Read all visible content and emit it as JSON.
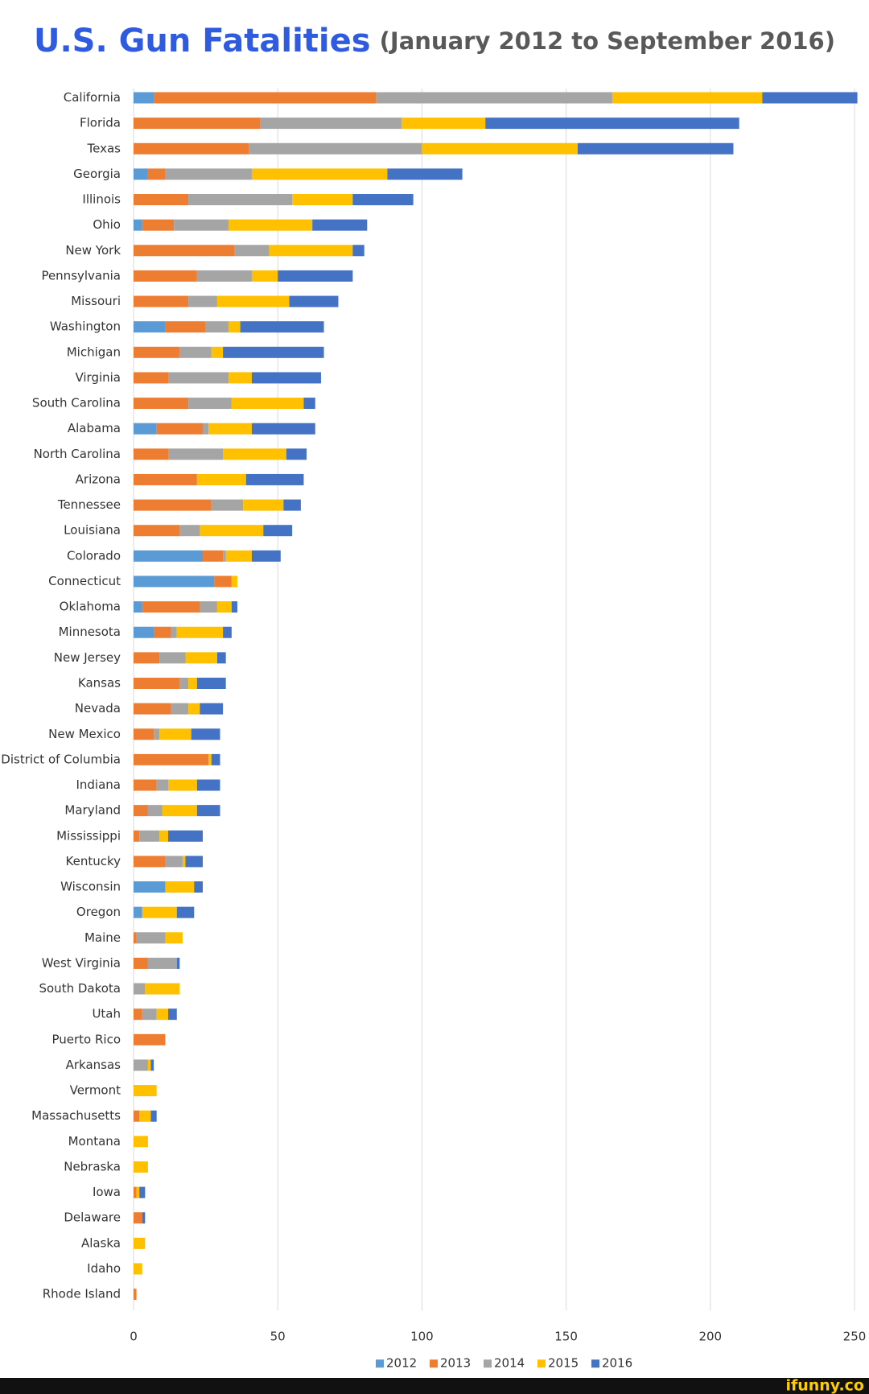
{
  "chart_data": {
    "type": "stacked_bar_horizontal",
    "title": "U.S. Gun Fatalities",
    "subtitle": "(January 2012 to September 2016)",
    "categories": [
      "California",
      "Florida",
      "Texas",
      "Georgia",
      "Illinois",
      "Ohio",
      "New York",
      "Pennsylvania",
      "Missouri",
      "Washington",
      "Michigan",
      "Virginia",
      "South Carolina",
      "Alabama",
      "North Carolina",
      "Arizona",
      "Tennessee",
      "Louisiana",
      "Colorado",
      "Connecticut",
      "Oklahoma",
      "Minnesota",
      "New Jersey",
      "Kansas",
      "Nevada",
      "New Mexico",
      "District of Columbia",
      "Indiana",
      "Maryland",
      "Mississippi",
      "Kentucky",
      "Wisconsin",
      "Oregon",
      "Maine",
      "West Virginia",
      "South Dakota",
      "Utah",
      "Puerto Rico",
      "Arkansas",
      "Vermont",
      "Massachusetts",
      "Montana",
      "Nebraska",
      "Iowa",
      "Delaware",
      "Alaska",
      "Idaho",
      "Rhode Island"
    ],
    "series": [
      {
        "name": "2012",
        "color": "#5b9bd5",
        "values": [
          7,
          0,
          0,
          5,
          0,
          3,
          0,
          0,
          0,
          11,
          0,
          0,
          0,
          8,
          0,
          0,
          0,
          0,
          24,
          28,
          3,
          7,
          0,
          0,
          0,
          0,
          0,
          0,
          0,
          0,
          0,
          11,
          3,
          0,
          0,
          0,
          0,
          0,
          0,
          0,
          0,
          0,
          0,
          0,
          0,
          0,
          0,
          0
        ]
      },
      {
        "name": "2013",
        "color": "#ed7d31",
        "values": [
          77,
          44,
          40,
          6,
          19,
          11,
          35,
          22,
          19,
          14,
          16,
          12,
          19,
          16,
          12,
          22,
          27,
          16,
          7,
          6,
          20,
          6,
          9,
          16,
          13,
          7,
          26,
          8,
          5,
          2,
          11,
          0,
          0,
          1,
          5,
          0,
          3,
          11,
          0,
          0,
          2,
          0,
          0,
          1,
          3,
          0,
          0,
          1
        ]
      },
      {
        "name": "2014",
        "color": "#a5a5a5",
        "values": [
          82,
          49,
          60,
          30,
          36,
          19,
          12,
          19,
          10,
          8,
          11,
          21,
          15,
          2,
          19,
          0,
          11,
          7,
          1,
          0,
          6,
          2,
          9,
          3,
          6,
          2,
          0,
          4,
          5,
          7,
          6,
          0,
          0,
          10,
          10,
          4,
          5,
          0,
          5,
          0,
          0,
          0,
          0,
          0,
          0,
          0,
          0,
          0
        ]
      },
      {
        "name": "2015",
        "color": "#ffc000",
        "values": [
          52,
          29,
          54,
          47,
          21,
          29,
          29,
          9,
          25,
          4,
          4,
          8,
          25,
          15,
          22,
          17,
          14,
          22,
          9,
          2,
          5,
          16,
          11,
          3,
          4,
          11,
          1,
          10,
          12,
          3,
          1,
          10,
          12,
          6,
          0,
          12,
          4,
          0,
          1,
          8,
          4,
          5,
          5,
          1,
          0,
          4,
          3,
          0
        ]
      },
      {
        "name": "2016",
        "color": "#4472c4",
        "values": [
          33,
          88,
          54,
          26,
          21,
          19,
          4,
          26,
          17,
          29,
          35,
          24,
          4,
          22,
          7,
          20,
          6,
          10,
          10,
          0,
          2,
          3,
          3,
          10,
          8,
          10,
          3,
          8,
          8,
          12,
          6,
          3,
          6,
          0,
          1,
          0,
          3,
          0,
          1,
          0,
          2,
          0,
          0,
          2,
          1,
          0,
          0,
          0
        ]
      }
    ],
    "xlim": [
      0,
      250
    ],
    "xticks": [
      0,
      50,
      100,
      150,
      200,
      250
    ],
    "grid": true,
    "legend": "bottom",
    "watermark": "ifunny.co"
  }
}
